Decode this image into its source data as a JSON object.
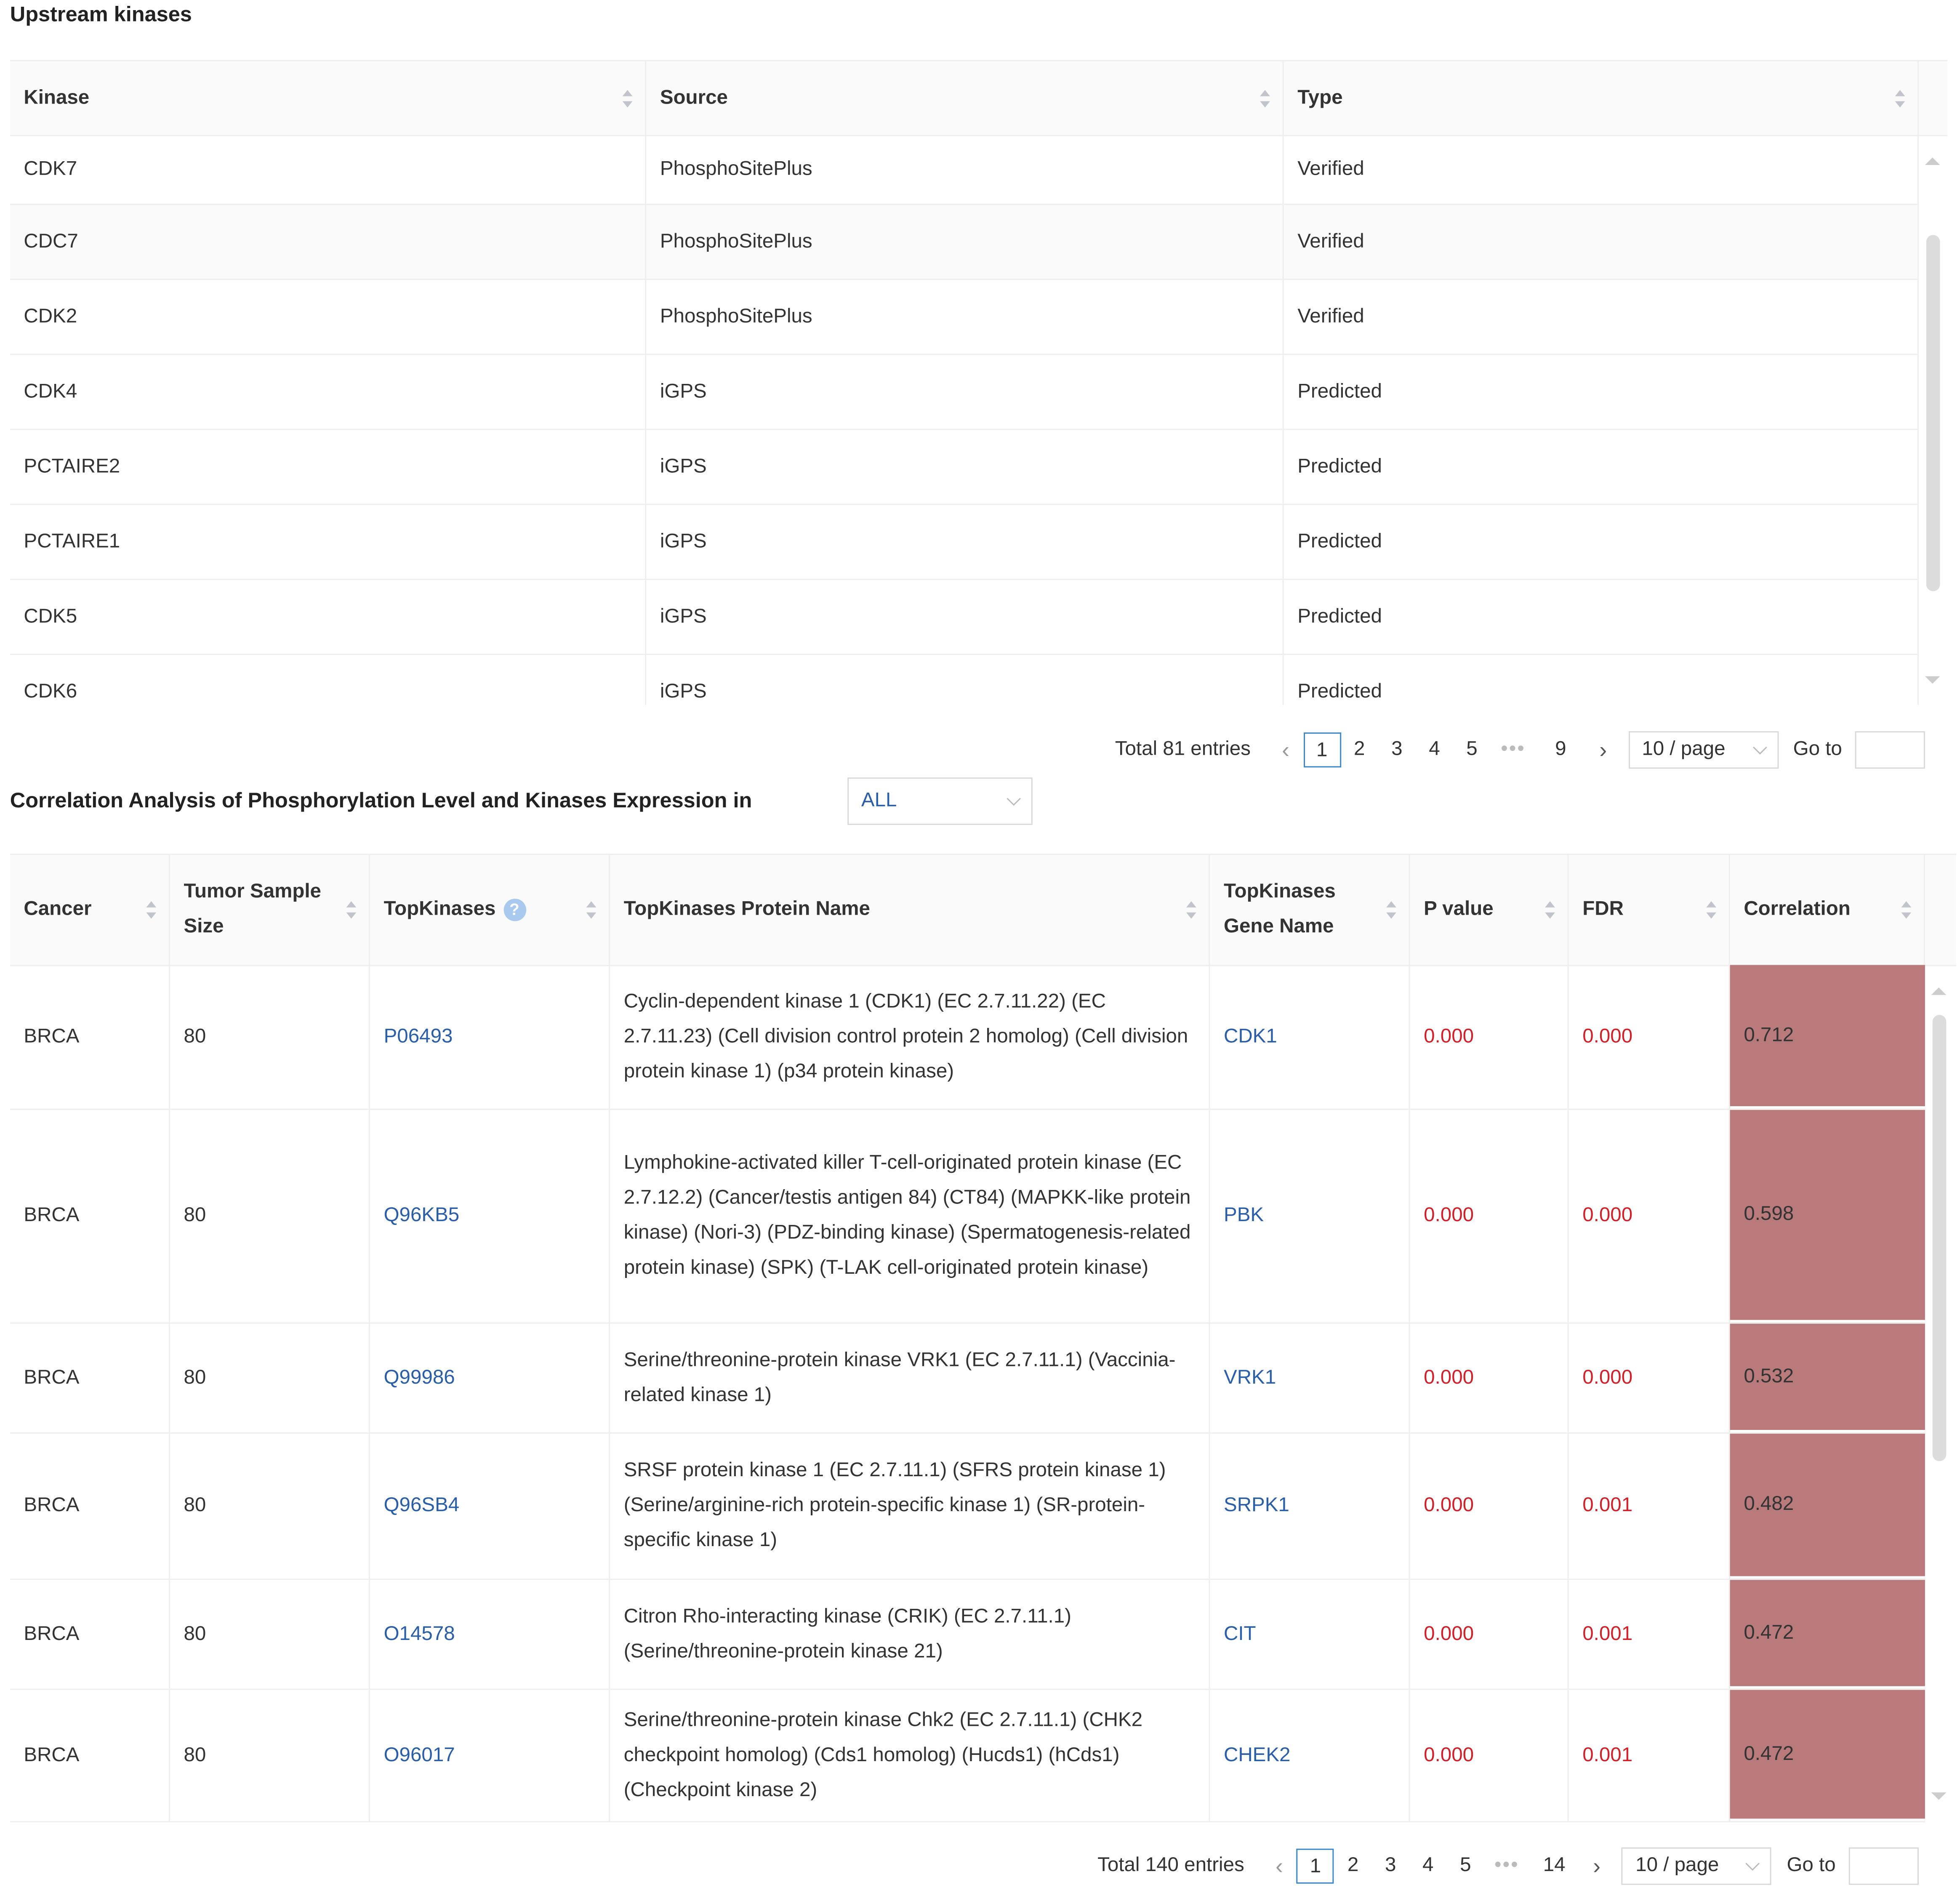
{
  "upstream": {
    "title": "Upstream kinases",
    "columns": [
      "Kinase",
      "Source",
      "Type"
    ],
    "rows": [
      [
        "CDK7",
        "PhosphoSitePlus",
        "Verified"
      ],
      [
        "CDC7",
        "PhosphoSitePlus",
        "Verified"
      ],
      [
        "CDK2",
        "PhosphoSitePlus",
        "Verified"
      ],
      [
        "CDK4",
        "iGPS",
        "Predicted"
      ],
      [
        "PCTAIRE2",
        "iGPS",
        "Predicted"
      ],
      [
        "PCTAIRE1",
        "iGPS",
        "Predicted"
      ],
      [
        "CDK5",
        "iGPS",
        "Predicted"
      ],
      [
        "CDK6",
        "iGPS",
        "Predicted"
      ]
    ],
    "pagination": {
      "total": "Total 81 entries",
      "pages": [
        "1",
        "2",
        "3",
        "4",
        "5",
        "•••",
        "9"
      ],
      "current": "1",
      "page_size": "10 / page",
      "goto_label": "Go to",
      "goto_value": ""
    }
  },
  "correlation": {
    "title": "Correlation Analysis of Phosphorylation Level and Kinases Expression in",
    "filter_value": "ALL",
    "columns": [
      "Cancer",
      "Tumor Sample Size",
      "TopKinases",
      "TopKinases Protein Name",
      "TopKinases Gene Name",
      "P value",
      "FDR",
      "Correlation"
    ],
    "help_icon": "question-circle-icon",
    "rows": [
      [
        "BRCA",
        "80",
        "P06493",
        "Cyclin-dependent kinase 1 (CDK1) (EC 2.7.11.22) (EC 2.7.11.23) (Cell division control protein 2 homolog) (Cell division protein kinase 1) (p34 protein kinase)",
        "CDK1",
        "0.000",
        "0.000",
        "0.712"
      ],
      [
        "BRCA",
        "80",
        "Q96KB5",
        "Lymphokine-activated killer T-cell-originated protein kinase (EC 2.7.12.2) (Cancer/testis antigen 84) (CT84) (MAPKK-like protein kinase) (Nori-3) (PDZ-binding kinase) (Spermatogenesis-related protein kinase) (SPK) (T-LAK cell-originated protein kinase)",
        "PBK",
        "0.000",
        "0.000",
        "0.598"
      ],
      [
        "BRCA",
        "80",
        "Q99986",
        "Serine/threonine-protein kinase VRK1 (EC 2.7.11.1) (Vaccinia-related kinase 1)",
        "VRK1",
        "0.000",
        "0.000",
        "0.532"
      ],
      [
        "BRCA",
        "80",
        "Q96SB4",
        "SRSF protein kinase 1 (EC 2.7.11.1) (SFRS protein kinase 1) (Serine/arginine-rich protein-specific kinase 1) (SR-protein-specific kinase 1)",
        "SRPK1",
        "0.000",
        "0.001",
        "0.482"
      ],
      [
        "BRCA",
        "80",
        "O14578",
        "Citron Rho-interacting kinase (CRIK) (EC 2.7.11.1) (Serine/threonine-protein kinase 21)",
        "CIT",
        "0.000",
        "0.001",
        "0.472"
      ],
      [
        "BRCA",
        "80",
        "O96017",
        "Serine/threonine-protein kinase Chk2 (EC 2.7.11.1) (CHK2 checkpoint homolog) (Cds1 homolog) (Hucds1) (hCds1) (Checkpoint kinase 2)",
        "CHEK2",
        "0.000",
        "0.001",
        "0.472"
      ]
    ],
    "pagination": {
      "total": "Total 140 entries",
      "pages": [
        "1",
        "2",
        "3",
        "4",
        "5",
        "•••",
        "14"
      ],
      "current": "1",
      "page_size": "10 / page",
      "goto_label": "Go to",
      "goto_value": ""
    }
  },
  "colors": {
    "link": "#2a5ea8",
    "significant": "#d0212b",
    "correlation_fill": "#b87a7a",
    "active_page": "#3b86c9"
  }
}
